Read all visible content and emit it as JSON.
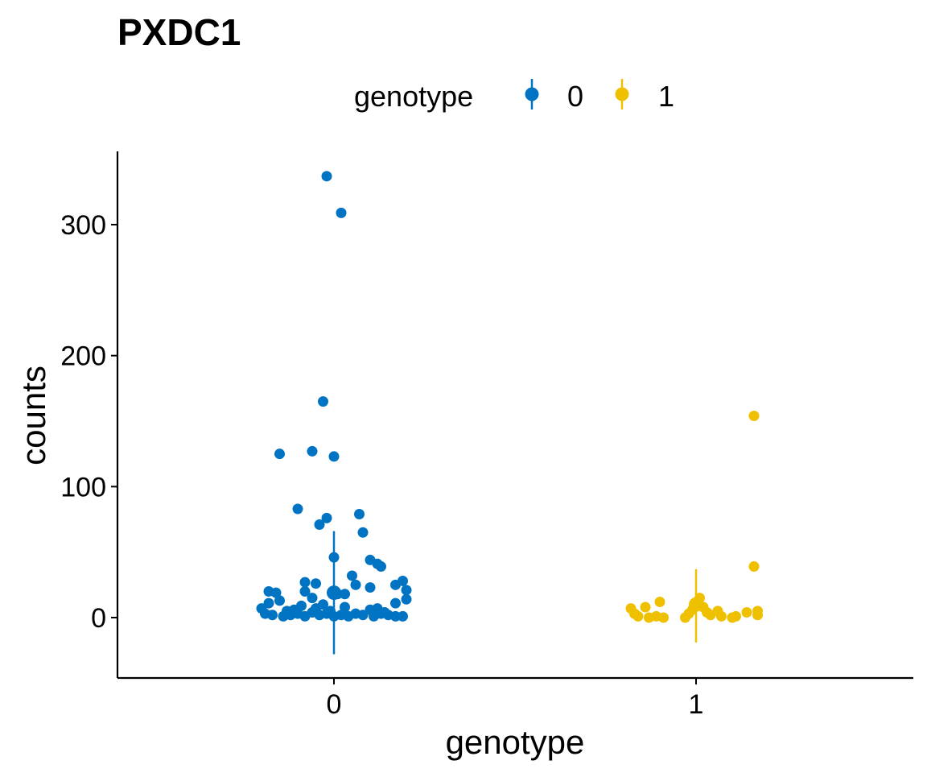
{
  "chart_data": {
    "type": "scatter",
    "title": "PXDC1",
    "xlabel": "genotype",
    "ylabel": "counts",
    "categories": [
      "0",
      "1"
    ],
    "yticks": [
      0,
      100,
      200,
      300
    ],
    "ylim": [
      -46,
      353
    ],
    "legend": {
      "title": "genotype",
      "position": "top",
      "entries": [
        {
          "label": "0",
          "color": "#0073C2"
        },
        {
          "label": "1",
          "color": "#EFC000"
        }
      ]
    },
    "series": [
      {
        "name": "0",
        "category": "0",
        "color": "#0073C2",
        "summary": {
          "mean": 19,
          "low": -28,
          "high": 66
        },
        "points": [
          {
            "dx": -0.02,
            "y": 337
          },
          {
            "dx": 0.02,
            "y": 309
          },
          {
            "dx": -0.03,
            "y": 165
          },
          {
            "dx": -0.15,
            "y": 125
          },
          {
            "dx": -0.06,
            "y": 127
          },
          {
            "dx": 0.0,
            "y": 123
          },
          {
            "dx": -0.1,
            "y": 83
          },
          {
            "dx": -0.02,
            "y": 76
          },
          {
            "dx": 0.07,
            "y": 79
          },
          {
            "dx": -0.04,
            "y": 71
          },
          {
            "dx": 0.08,
            "y": 65
          },
          {
            "dx": 0.0,
            "y": 46
          },
          {
            "dx": 0.1,
            "y": 44
          },
          {
            "dx": 0.12,
            "y": 41
          },
          {
            "dx": 0.13,
            "y": 39
          },
          {
            "dx": 0.05,
            "y": 32
          },
          {
            "dx": 0.06,
            "y": 25
          },
          {
            "dx": 0.1,
            "y": 23
          },
          {
            "dx": 0.19,
            "y": 28
          },
          {
            "dx": 0.17,
            "y": 25
          },
          {
            "dx": 0.2,
            "y": 21
          },
          {
            "dx": -0.08,
            "y": 27
          },
          {
            "dx": -0.05,
            "y": 26
          },
          {
            "dx": -0.18,
            "y": 20
          },
          {
            "dx": -0.16,
            "y": 19
          },
          {
            "dx": -0.08,
            "y": 20
          },
          {
            "dx": 0.0,
            "y": 20
          },
          {
            "dx": 0.01,
            "y": 18
          },
          {
            "dx": 0.03,
            "y": 18
          },
          {
            "dx": 0.2,
            "y": 14
          },
          {
            "dx": -0.06,
            "y": 15
          },
          {
            "dx": -0.15,
            "y": 13
          },
          {
            "dx": -0.18,
            "y": 11
          },
          {
            "dx": 0.17,
            "y": 11
          },
          {
            "dx": -0.09,
            "y": 9
          },
          {
            "dx": -0.03,
            "y": 10
          },
          {
            "dx": -0.2,
            "y": 7
          },
          {
            "dx": -0.13,
            "y": 5
          },
          {
            "dx": -0.11,
            "y": 6
          },
          {
            "dx": -0.05,
            "y": 7
          },
          {
            "dx": 0.03,
            "y": 8
          },
          {
            "dx": 0.1,
            "y": 6
          },
          {
            "dx": 0.12,
            "y": 7
          },
          {
            "dx": -0.19,
            "y": 3
          },
          {
            "dx": -0.17,
            "y": 2
          },
          {
            "dx": -0.14,
            "y": 1
          },
          {
            "dx": -0.12,
            "y": 2
          },
          {
            "dx": -0.1,
            "y": 3
          },
          {
            "dx": -0.08,
            "y": 1
          },
          {
            "dx": -0.06,
            "y": 4
          },
          {
            "dx": -0.04,
            "y": 2
          },
          {
            "dx": -0.02,
            "y": 3
          },
          {
            "dx": 0.0,
            "y": 1
          },
          {
            "dx": 0.02,
            "y": 2
          },
          {
            "dx": 0.04,
            "y": 1
          },
          {
            "dx": 0.06,
            "y": 3
          },
          {
            "dx": 0.08,
            "y": 2
          },
          {
            "dx": 0.11,
            "y": 1
          },
          {
            "dx": 0.13,
            "y": 3
          },
          {
            "dx": 0.15,
            "y": 2
          },
          {
            "dx": 0.17,
            "y": 1
          },
          {
            "dx": 0.19,
            "y": 1
          },
          {
            "dx": 0.14,
            "y": 4
          },
          {
            "dx": -0.01,
            "y": 5
          }
        ]
      },
      {
        "name": "1",
        "category": "1",
        "color": "#EFC000",
        "summary": {
          "mean": 10,
          "low": -19,
          "high": 37
        },
        "points": [
          {
            "dx": 0.16,
            "y": 154
          },
          {
            "dx": 0.16,
            "y": 39
          },
          {
            "dx": -0.18,
            "y": 7
          },
          {
            "dx": -0.14,
            "y": 8
          },
          {
            "dx": -0.1,
            "y": 12
          },
          {
            "dx": -0.17,
            "y": 3
          },
          {
            "dx": -0.16,
            "y": 1
          },
          {
            "dx": -0.13,
            "y": 0
          },
          {
            "dx": -0.11,
            "y": 1
          },
          {
            "dx": -0.09,
            "y": 0
          },
          {
            "dx": -0.03,
            "y": 0
          },
          {
            "dx": -0.02,
            "y": 3
          },
          {
            "dx": -0.01,
            "y": 6
          },
          {
            "dx": 0.0,
            "y": 10
          },
          {
            "dx": 0.01,
            "y": 15
          },
          {
            "dx": 0.02,
            "y": 8
          },
          {
            "dx": 0.03,
            "y": 4
          },
          {
            "dx": 0.04,
            "y": 2
          },
          {
            "dx": 0.06,
            "y": 5
          },
          {
            "dx": 0.07,
            "y": 1
          },
          {
            "dx": 0.1,
            "y": 0
          },
          {
            "dx": 0.11,
            "y": 1
          },
          {
            "dx": 0.14,
            "y": 4
          },
          {
            "dx": 0.17,
            "y": 5
          },
          {
            "dx": 0.17,
            "y": 2
          }
        ]
      }
    ]
  }
}
